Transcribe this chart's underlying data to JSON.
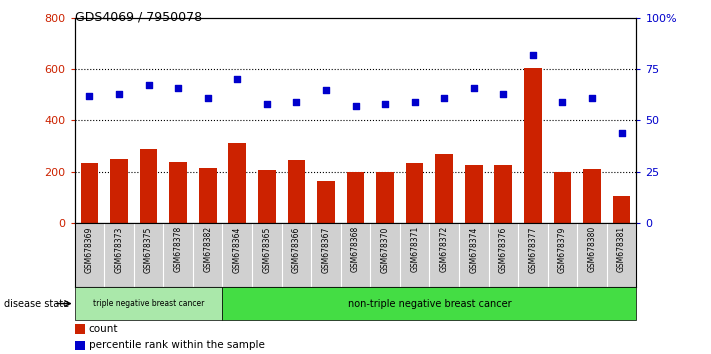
{
  "title": "GDS4069 / 7950078",
  "samples": [
    "GSM678369",
    "GSM678373",
    "GSM678375",
    "GSM678378",
    "GSM678382",
    "GSM678364",
    "GSM678365",
    "GSM678366",
    "GSM678367",
    "GSM678368",
    "GSM678370",
    "GSM678371",
    "GSM678372",
    "GSM678374",
    "GSM678376",
    "GSM678377",
    "GSM678379",
    "GSM678380",
    "GSM678381"
  ],
  "counts": [
    235,
    250,
    290,
    238,
    215,
    310,
    205,
    245,
    165,
    200,
    200,
    235,
    270,
    225,
    225,
    605,
    200,
    210,
    105
  ],
  "percentiles": [
    62,
    63,
    67,
    66,
    61,
    70,
    58,
    59,
    65,
    57,
    58,
    59,
    61,
    66,
    63,
    82,
    59,
    61,
    44
  ],
  "triple_neg_count": 5,
  "non_triple_neg_count": 14,
  "left_ylim": [
    0,
    800
  ],
  "right_ylim": [
    0,
    100
  ],
  "left_yticks": [
    0,
    200,
    400,
    600,
    800
  ],
  "right_yticks": [
    0,
    25,
    50,
    75,
    100
  ],
  "right_yticklabels": [
    "0",
    "25",
    "50",
    "75",
    "100%"
  ],
  "bar_color": "#cc2200",
  "dot_color": "#0000cc",
  "grid_values": [
    200,
    400,
    600
  ],
  "triple_neg_label": "triple negative breast cancer",
  "non_triple_neg_label": "non-triple negative breast cancer",
  "disease_state_label": "disease state",
  "legend_bar_label": "count",
  "legend_dot_label": "percentile rank within the sample",
  "bg_gray": "#d0d0d0",
  "bg_green_light": "#aae8aa",
  "bg_green_dark": "#44dd44"
}
